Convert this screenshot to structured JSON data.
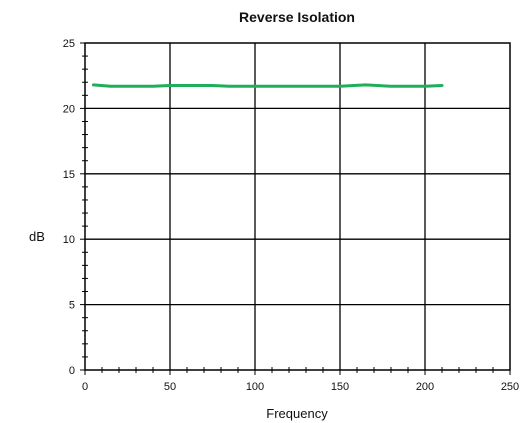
{
  "chart_data": {
    "type": "line",
    "title": "Reverse Isolation",
    "xlabel": "Frequency",
    "ylabel": "dB",
    "xlim": [
      0,
      250
    ],
    "ylim": [
      0,
      25
    ],
    "xticks": [
      0,
      50,
      100,
      150,
      200,
      250
    ],
    "yticks": [
      0,
      5,
      10,
      15,
      20,
      25
    ],
    "grid": true,
    "series": [
      {
        "color": "#1fae5a",
        "x": [
          5,
          15,
          30,
          40,
          50,
          60,
          75,
          85,
          100,
          120,
          150,
          165,
          180,
          190,
          200,
          210
        ],
        "y": [
          21.8,
          21.7,
          21.7,
          21.7,
          21.75,
          21.75,
          21.75,
          21.7,
          21.7,
          21.7,
          21.7,
          21.8,
          21.7,
          21.7,
          21.7,
          21.75
        ]
      }
    ]
  }
}
